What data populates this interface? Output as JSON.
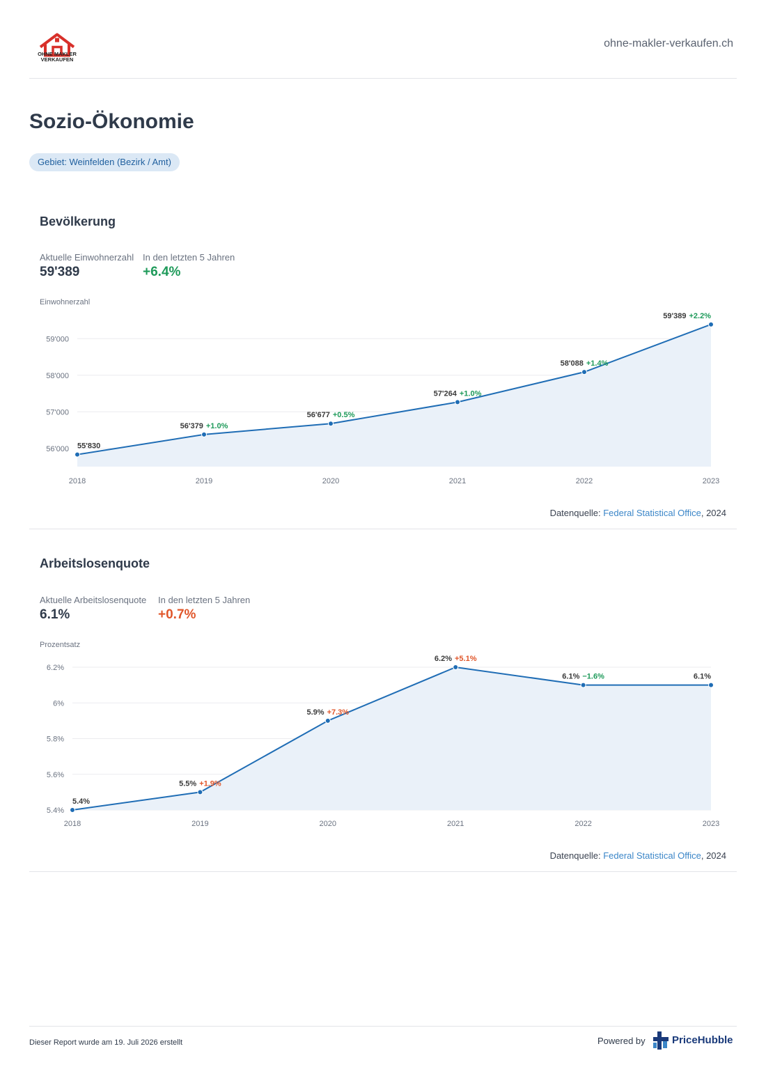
{
  "header": {
    "logo_line1": "OHNE MAKLER",
    "logo_line2": "VERKAUFEN",
    "site_url": "ohne-makler-verkaufen.ch"
  },
  "page_title": "Sozio-Ökonomie",
  "area_chip": "Gebiet: Weinfelden (Bezirk / Amt)",
  "colors": {
    "line": "#1f6db5",
    "area": "#eaf1f9",
    "positive": "#1e9a5a",
    "negative": "#e0562a",
    "chip_bg": "#dbe8f5",
    "link": "#3b86c8"
  },
  "population": {
    "title": "Bevölkerung",
    "current_label": "Aktuelle Einwohnerzahl",
    "current_value": "59'389",
    "change_label": "In den letzten 5 Jahren",
    "change_value": "+6.4%",
    "axis_label": "Einwohnerzahl",
    "source_prefix": "Datenquelle: ",
    "source_link": "Federal Statistical Office",
    "source_suffix": ", 2024"
  },
  "unemployment": {
    "title": "Arbeitslosenquote",
    "current_label": "Aktuelle Arbeitslosenquote",
    "current_value": "6.1%",
    "change_label": "In den letzten 5 Jahren",
    "change_value": "+0.7%",
    "axis_label": "Prozentsatz",
    "source_prefix": "Datenquelle: ",
    "source_link": "Federal Statistical Office",
    "source_suffix": ", 2024"
  },
  "chart_data": [
    {
      "type": "area",
      "ylabel": "Einwohnerzahl",
      "x": [
        "2018",
        "2019",
        "2020",
        "2021",
        "2022",
        "2023"
      ],
      "y": [
        55830,
        56379,
        56677,
        57264,
        58088,
        59389
      ],
      "value_labels": [
        "55'830",
        "56'379",
        "56'677",
        "57'264",
        "58'088",
        "59'389"
      ],
      "change_labels": [
        "",
        "+1.0%",
        "+0.5%",
        "+1.0%",
        "+1.4%",
        "+2.2%"
      ],
      "change_sign": [
        "",
        "good",
        "good",
        "good",
        "good",
        "good"
      ],
      "yticks": [
        56000,
        57000,
        58000,
        59000
      ],
      "ytick_labels": [
        "56'000",
        "57'000",
        "58'000",
        "59'000"
      ],
      "ylim": [
        55500,
        59500
      ],
      "grid": true
    },
    {
      "type": "area",
      "ylabel": "Prozentsatz",
      "x": [
        "2018",
        "2019",
        "2020",
        "2021",
        "2022",
        "2023"
      ],
      "y": [
        5.4,
        5.5,
        5.9,
        6.2,
        6.1,
        6.1
      ],
      "value_labels": [
        "5.4%",
        "5.5%",
        "5.9%",
        "6.2%",
        "6.1%",
        "6.1%"
      ],
      "change_labels": [
        "",
        "+1.9%",
        "+7.3%",
        "+5.1%",
        "−1.6%",
        ""
      ],
      "change_sign": [
        "",
        "bad",
        "bad",
        "bad",
        "good",
        ""
      ],
      "yticks": [
        5.4,
        5.6,
        5.8,
        6.0,
        6.2
      ],
      "ytick_labels": [
        "5.4%",
        "5.6%",
        "5.8%",
        "6%",
        "6.2%"
      ],
      "ylim": [
        5.4,
        6.2
      ],
      "grid": true
    }
  ],
  "footer": {
    "report_text": "Dieser Report wurde am 19. Juli 2026 erstellt",
    "powered_by": "Powered by",
    "brand": "PriceHubble"
  }
}
